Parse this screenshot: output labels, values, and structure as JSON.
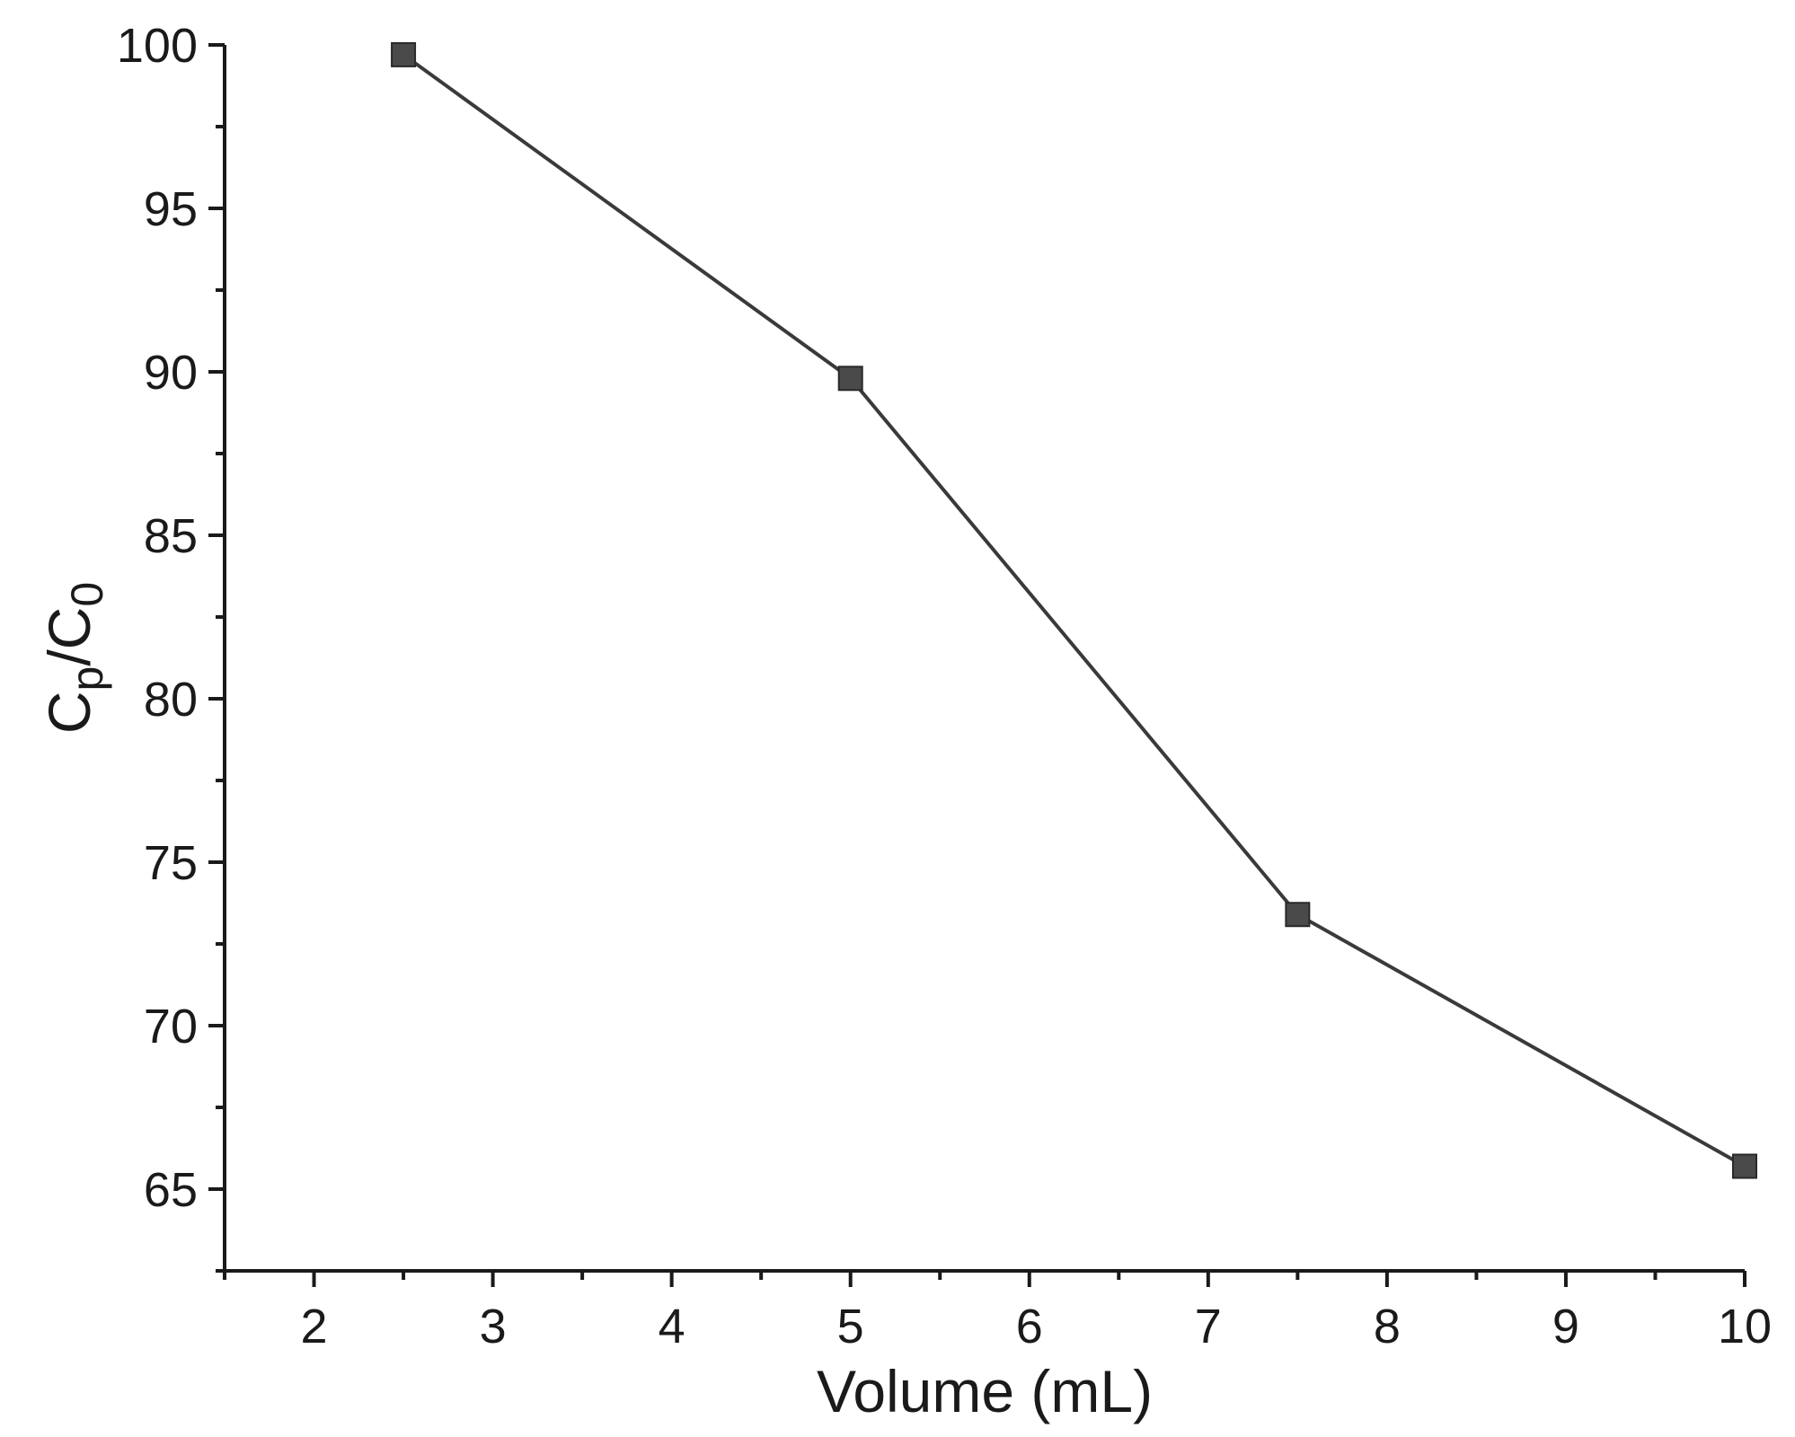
{
  "chart_data": {
    "type": "line",
    "title": "",
    "xlabel": "Volume (mL)",
    "ylabel_main": "C",
    "ylabel_sub1": "p",
    "ylabel_mid": "/C",
    "ylabel_sub2": "0",
    "xlim": [
      1.5,
      10
    ],
    "ylim": [
      62.5,
      100
    ],
    "x_ticks": [
      2,
      3,
      4,
      5,
      6,
      7,
      8,
      9,
      10
    ],
    "y_ticks": [
      65,
      70,
      75,
      80,
      85,
      90,
      95,
      100
    ],
    "grid": false,
    "series": [
      {
        "x": [
          2.5,
          5,
          7.5,
          10
        ],
        "values": [
          99.7,
          89.8,
          73.4,
          65.7
        ]
      }
    ],
    "colors": {
      "line": "#3a3a3a",
      "marker": "#4a4a4a",
      "axis": "#1a1a1a"
    }
  }
}
